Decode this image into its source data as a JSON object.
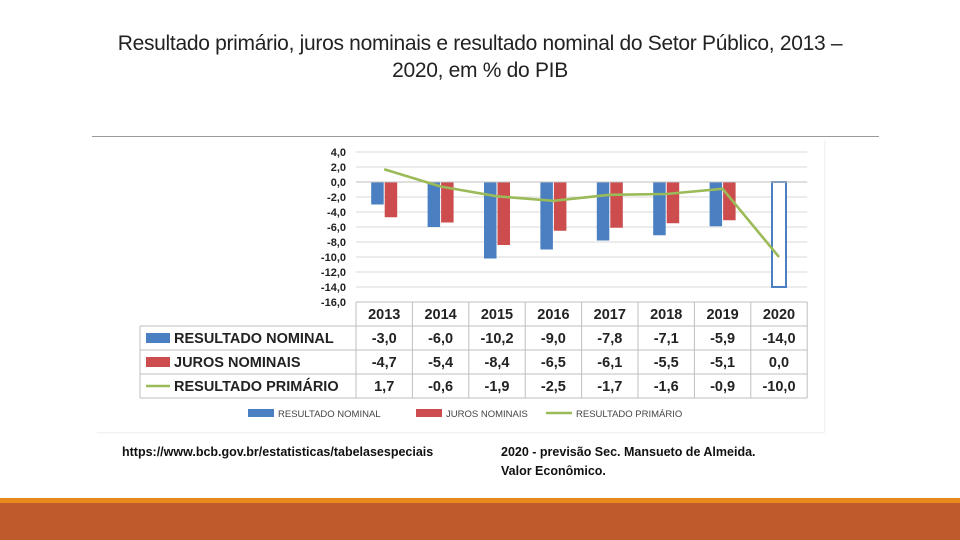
{
  "slide": {
    "title_line1": "Resultado primário, juros nominais e resultado nominal do Setor Público,  2013 –",
    "title_line2": "2020, em % do PIB"
  },
  "chart_data": {
    "type": "bar",
    "subtype": "bar+line with data table",
    "title": "Resultado primário, juros nominais e resultado nominal do Setor Público,  2013 – 2020, em % do PIB",
    "categories": [
      "2013",
      "2014",
      "2015",
      "2016",
      "2017",
      "2018",
      "2019",
      "2020"
    ],
    "y_ticks": [
      "4,0",
      "2,0",
      "0,0",
      "-2,0",
      "-4,0",
      "-6,0",
      "-8,0",
      "-10,0",
      "-12,0",
      "-14,0",
      "-16,0"
    ],
    "ylim": [
      -16,
      4
    ],
    "grid": true,
    "legend_position": "bottom",
    "series": [
      {
        "name": "RESULTADO NOMINAL",
        "type": "bar",
        "color": "#4a7fc1",
        "values": [
          -3.0,
          -6.0,
          -10.2,
          -9.0,
          -7.8,
          -7.1,
          -5.9,
          -14.0
        ],
        "labels": [
          "-3,0",
          "-6,0",
          "-10,2",
          "-9,0",
          "-7,8",
          "-7,1",
          "-5,9",
          "-14,0"
        ],
        "highlight_last": true
      },
      {
        "name": "JUROS NOMINAIS",
        "type": "bar",
        "color": "#cd4d4f",
        "values": [
          -4.7,
          -5.4,
          -8.4,
          -6.5,
          -6.1,
          -5.5,
          -5.1,
          0.0
        ],
        "labels": [
          "-4,7",
          "-5,4",
          "-8,4",
          "-6,5",
          "-6,1",
          "-5,5",
          "-5,1",
          "0,0"
        ]
      },
      {
        "name": "RESULTADO PRIMÁRIO",
        "type": "line",
        "color": "#9bbb59",
        "values": [
          1.7,
          -0.6,
          -1.9,
          -2.5,
          -1.7,
          -1.6,
          -0.9,
          -10.0
        ],
        "labels": [
          "1,7",
          "-0,6",
          "-1,9",
          "-2,5",
          "-1,7",
          "-1,6",
          "-0,9",
          "-10,0"
        ]
      }
    ],
    "legend": [
      "RESULTADO NOMINAL",
      "JUROS NOMINAIS",
      "RESULTADO PRIMÁRIO"
    ]
  },
  "sources": {
    "left": "https://www.bcb.gov.br/estatisticas/tabelasespeciais",
    "right_line1": "2020 - previsão Sec. Mansueto de Almeida.",
    "right_line2": "Valor Econômico."
  }
}
